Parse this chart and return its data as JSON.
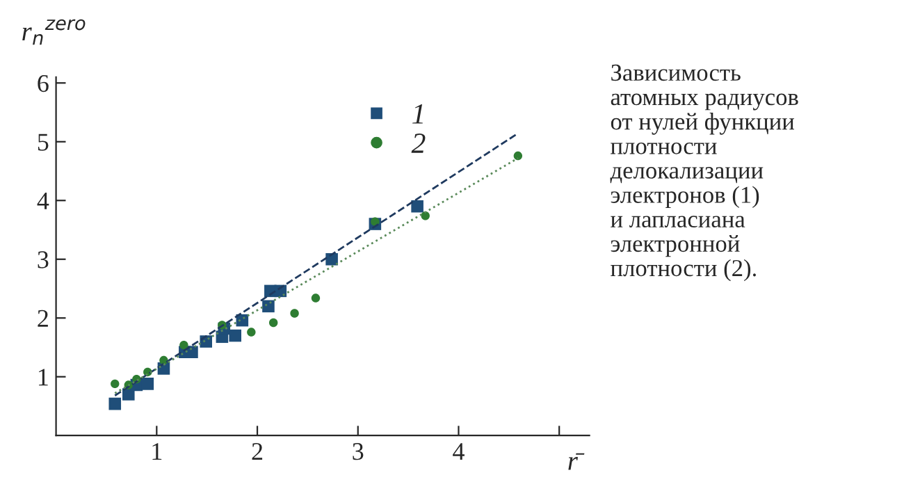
{
  "chart_data": {
    "type": "scatter",
    "ylabel": "r$_{n}$$^{zero}$",
    "xlabel": "r̄",
    "xlim": [
      0,
      5.3
    ],
    "xticks": [
      1,
      2,
      3,
      4,
      {
        "value": 5,
        "label": null
      }
    ],
    "ylim": [
      0,
      6.1
    ],
    "yticks": [
      1,
      2,
      3,
      4,
      5,
      6
    ],
    "grid": false,
    "legend": "top",
    "series": [
      {
        "name": "1",
        "marker": "square",
        "color": "#1f4e79",
        "x": [
          0.585,
          0.72,
          0.8,
          0.91,
          1.07,
          1.28,
          1.35,
          1.49,
          1.65,
          1.67,
          1.78,
          1.85,
          2.11,
          2.13,
          2.23,
          2.74,
          3.17,
          3.59
        ],
        "values": [
          0.54,
          0.7,
          0.86,
          0.88,
          1.14,
          1.42,
          1.42,
          1.6,
          1.68,
          1.82,
          1.7,
          1.96,
          2.2,
          2.46,
          2.46,
          3.0,
          3.6,
          3.9
        ]
      },
      {
        "name": "2",
        "marker": "circle",
        "color": "#2e7d32",
        "x": [
          0.585,
          0.72,
          0.8,
          0.91,
          1.07,
          1.27,
          1.65,
          1.94,
          2.16,
          2.37,
          2.58,
          3.17,
          3.67,
          4.59
        ],
        "values": [
          0.88,
          0.86,
          0.96,
          1.08,
          1.28,
          1.54,
          1.88,
          1.76,
          1.92,
          2.08,
          2.34,
          3.64,
          3.74,
          4.76
        ]
      },
      {
        "type": "line",
        "line_style": "dashed",
        "color": "#1f3a5f",
        "x": [
          0.585,
          4.57
        ],
        "values": [
          0.68,
          5.12
        ]
      },
      {
        "type": "line",
        "line_style": "dotted",
        "color": "#5a8a5a",
        "x": [
          0.585,
          4.59
        ],
        "values": [
          0.72,
          4.72
        ]
      }
    ],
    "annotations": [
      "Зависимость\nатомных радиусов\nот нулей функции\nплотности\nделокализации\nэлектронов (1)\nи лапласиана\nэлектронной\nплотности (2)."
    ]
  }
}
